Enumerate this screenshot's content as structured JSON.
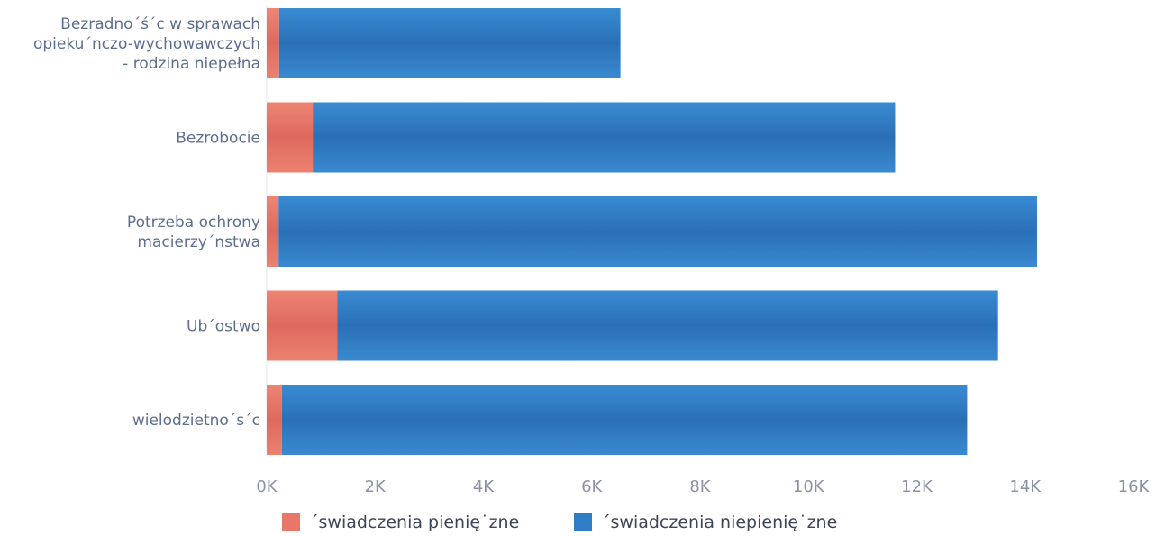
{
  "chart_data": {
    "type": "bar",
    "orientation": "horizontal",
    "stacked": true,
    "categories": [
      [
        "Bezradno´ś´c w sprawach",
        "opieku´nczo-wychowawczych",
        "- rodzina niepełna"
      ],
      [
        "Bezrobocie"
      ],
      [
        "Potrzeba ochrony",
        "macierzy´nstwa"
      ],
      [
        "Ub´ostwo"
      ],
      [
        "wielodzietno´s´c"
      ]
    ],
    "series": [
      {
        "name": "´swiadczenia pienię˙zne",
        "color": "#e8776a",
        "values": [
          230,
          850,
          220,
          1300,
          280
        ]
      },
      {
        "name": "´swiadczenia niepienię˙zne",
        "color": "#2f7dc6",
        "values": [
          6300,
          10750,
          14000,
          12200,
          12650
        ]
      }
    ],
    "xlim": [
      0,
      16000
    ],
    "xticks": [
      "0K",
      "2K",
      "4K",
      "6K",
      "8K",
      "10K",
      "12K",
      "14K",
      "16K"
    ],
    "xtick_values": [
      0,
      2000,
      4000,
      6000,
      8000,
      10000,
      12000,
      14000,
      16000
    ],
    "grid": false,
    "legend_position": "bottom"
  }
}
